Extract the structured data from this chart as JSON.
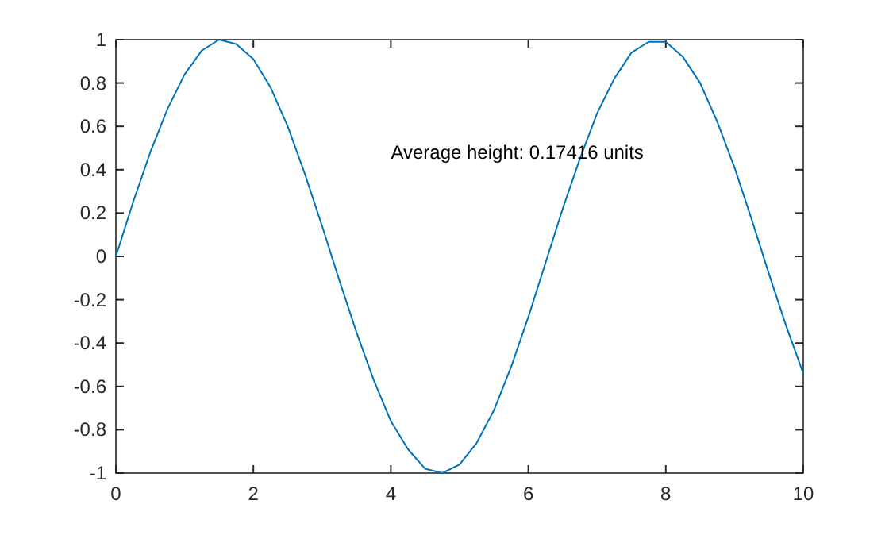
{
  "chart_data": {
    "type": "line",
    "x": [
      0,
      0.25,
      0.5,
      0.75,
      1,
      1.25,
      1.5,
      1.75,
      2,
      2.25,
      2.5,
      2.75,
      3,
      3.25,
      3.5,
      3.75,
      4,
      4.25,
      4.5,
      4.75,
      5,
      5.25,
      5.5,
      5.75,
      6,
      6.25,
      6.5,
      6.75,
      7,
      7.25,
      7.5,
      7.75,
      8,
      8.25,
      8.5,
      8.75,
      9,
      9.25,
      9.5,
      9.75,
      10
    ],
    "series": [
      {
        "color": "#0072bd",
        "values": [
          0,
          0.25,
          0.48,
          0.68,
          0.84,
          0.95,
          1,
          0.98,
          0.91,
          0.78,
          0.6,
          0.38,
          0.14,
          -0.11,
          -0.35,
          -0.57,
          -0.76,
          -0.89,
          -0.98,
          -1,
          -0.96,
          -0.86,
          -0.71,
          -0.51,
          -0.28,
          -0.03,
          0.22,
          0.45,
          0.66,
          0.82,
          0.94,
          0.99,
          0.99,
          0.92,
          0.8,
          0.62,
          0.41,
          0.17,
          -0.08,
          -0.32,
          -0.54
        ]
      }
    ],
    "xlim": [
      0,
      10
    ],
    "xticks": [
      0,
      2,
      4,
      6,
      8,
      10
    ],
    "ylim": [
      -1,
      1
    ],
    "yticks": [
      -1,
      -0.8,
      -0.6,
      -0.4,
      -0.2,
      0,
      0.2,
      0.4,
      0.6,
      0.8,
      1
    ],
    "annotations": [
      "Average height: 0.17416 units"
    ],
    "marker": "none",
    "line_style": "solid"
  }
}
